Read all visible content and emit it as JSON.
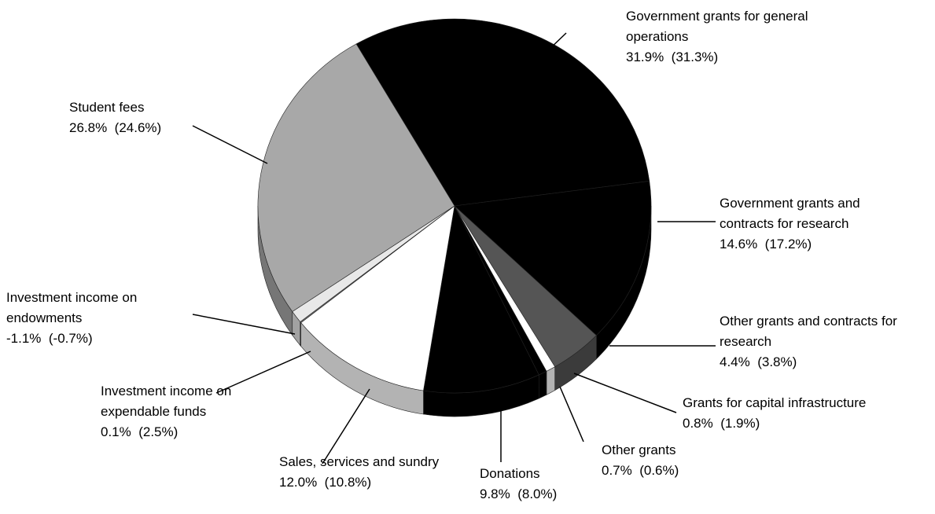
{
  "chart_data": {
    "type": "pie",
    "categories": [
      "Government grants for general operations",
      "Government grants and contracts for research",
      "Other grants and contracts for research",
      "Grants for capital infrastructure",
      "Other grants",
      "Donations",
      "Sales, services and sundry",
      "Investment income on expendable funds",
      "Investment income on endowments",
      "Student fees"
    ],
    "values": [
      31.9,
      14.6,
      4.4,
      0.8,
      0.7,
      9.8,
      12.0,
      0.1,
      -1.1,
      26.8
    ],
    "value_labels": [
      "31.9%",
      "14.6%",
      "4.4%",
      "0.8%",
      "0.7%",
      "9.8%",
      "12.0%",
      "0.1%",
      "-1.1%",
      "26.8%"
    ],
    "prior_labels": [
      "(31.3%)",
      "(17.2%)",
      "(3.8%)",
      "(1.9%)",
      "(0.6%)",
      "(8.0%)",
      "(10.8%)",
      "(2.5%)",
      "(-0.7%)",
      "(24.6%)"
    ],
    "colors": [
      "#000000",
      "#000000",
      "#555555",
      "#ffffff",
      "#000000",
      "#000000",
      "#ffffff",
      "#777777",
      "#e8e8e8",
      "#a8a8a8"
    ]
  }
}
